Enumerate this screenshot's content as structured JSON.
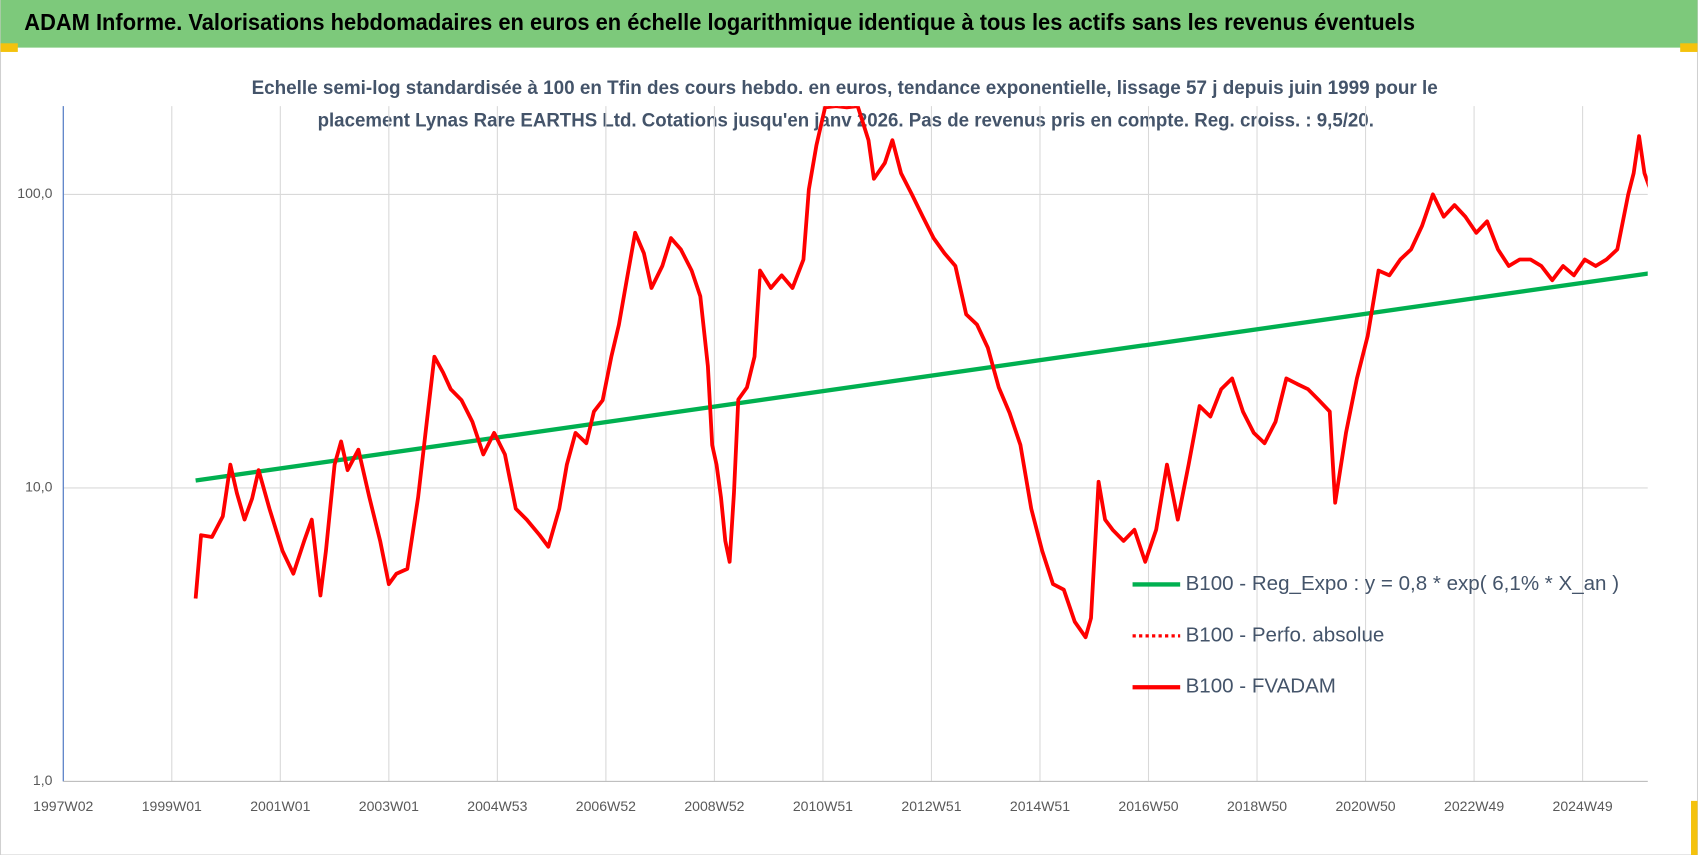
{
  "header": {
    "title": "ADAM Informe. Valorisations hebdomadaires en euros en échelle logarithmique identique à tous les actifs sans les revenus éventuels"
  },
  "chart_data": {
    "type": "line",
    "subtitle": [
      "Echelle semi-log standardisée à 100 en Tfin des cours hebdo. en euros, tendance exponentielle, lissage 57 j depuis juin 1999 pour le",
      "placement Lynas  Rare EARTHS Ltd. Cotations jusqu'en janv 2026. Pas de revenus pris en compte. Reg. croiss. : 9,5/20."
    ],
    "log_scale": true,
    "grid": true,
    "legend": "right",
    "ylim": [
      1,
      200
    ],
    "yticks": [
      {
        "value": 1,
        "label": "1,0"
      },
      {
        "value": 10,
        "label": "10,0"
      },
      {
        "value": 100,
        "label": "100,0"
      }
    ],
    "xlim": [
      1997,
      2026.2
    ],
    "xticks": [
      {
        "value": 1997,
        "label": "1997W02"
      },
      {
        "value": 1999,
        "label": "1999W01"
      },
      {
        "value": 2001,
        "label": "2001W01"
      },
      {
        "value": 2003,
        "label": "2003W01"
      },
      {
        "value": 2005,
        "label": "2004W53"
      },
      {
        "value": 2007,
        "label": "2006W52"
      },
      {
        "value": 2009,
        "label": "2008W52"
      },
      {
        "value": 2011,
        "label": "2010W51"
      },
      {
        "value": 2013,
        "label": "2012W51"
      },
      {
        "value": 2015,
        "label": "2014W51"
      },
      {
        "value": 2017,
        "label": "2016W50"
      },
      {
        "value": 2019,
        "label": "2018W50"
      },
      {
        "value": 2021,
        "label": "2020W50"
      },
      {
        "value": 2023,
        "label": "2022W49"
      },
      {
        "value": 2025,
        "label": "2024W49"
      }
    ],
    "x": [
      1999.44,
      1999.54,
      1999.74,
      1999.94,
      2000.08,
      2000.2,
      2000.34,
      2000.48,
      2000.6,
      2000.8,
      2001.04,
      2001.24,
      2001.44,
      2001.58,
      2001.74,
      2001.84,
      2002.0,
      2002.12,
      2002.24,
      2002.44,
      2002.64,
      2002.84,
      2003.0,
      2003.14,
      2003.34,
      2003.54,
      2003.7,
      2003.84,
      2004.0,
      2004.14,
      2004.34,
      2004.54,
      2004.74,
      2004.94,
      2005.14,
      2005.34,
      2005.54,
      2005.78,
      2005.94,
      2006.14,
      2006.28,
      2006.44,
      2006.64,
      2006.78,
      2006.94,
      2007.1,
      2007.24,
      2007.4,
      2007.54,
      2007.7,
      2007.84,
      2008.04,
      2008.2,
      2008.38,
      2008.58,
      2008.74,
      2008.88,
      2008.96,
      2009.04,
      2009.12,
      2009.2,
      2009.28,
      2009.36,
      2009.44,
      2009.6,
      2009.74,
      2009.84,
      2010.04,
      2010.24,
      2010.44,
      2010.64,
      2010.74,
      2010.88,
      2011.04,
      2011.24,
      2011.44,
      2011.64,
      2011.84,
      2011.94,
      2012.14,
      2012.28,
      2012.44,
      2012.64,
      2012.84,
      2013.04,
      2013.24,
      2013.44,
      2013.64,
      2013.84,
      2014.04,
      2014.24,
      2014.44,
      2014.64,
      2014.84,
      2015.04,
      2015.24,
      2015.44,
      2015.64,
      2015.84,
      2015.94,
      2016.08,
      2016.2,
      2016.34,
      2016.54,
      2016.74,
      2016.94,
      2017.14,
      2017.34,
      2017.54,
      2017.74,
      2017.94,
      2018.14,
      2018.34,
      2018.54,
      2018.74,
      2018.94,
      2019.14,
      2019.34,
      2019.54,
      2019.74,
      2019.94,
      2020.14,
      2020.34,
      2020.44,
      2020.64,
      2020.84,
      2021.04,
      2021.24,
      2021.44,
      2021.64,
      2021.84,
      2022.04,
      2022.24,
      2022.44,
      2022.64,
      2022.84,
      2023.04,
      2023.24,
      2023.44,
      2023.64,
      2023.84,
      2024.04,
      2024.24,
      2024.44,
      2024.64,
      2024.84,
      2025.04,
      2025.24,
      2025.44,
      2025.64,
      2025.84,
      2025.94,
      2026.04,
      2026.14,
      2026.28
    ],
    "series": [
      {
        "name": "B100 - Reg_Expo : y = 0,8 * exp( 6,1% *  X_an )",
        "color": "#00b050",
        "style": "solid",
        "x": [
          1999.44,
          2026.28
        ],
        "values": [
          10.6,
          54
        ]
      },
      {
        "name": "B100 - Perfo. absolue",
        "color": "#ff0000",
        "style": "dotted",
        "values": [
          4.2,
          6.9,
          6.8,
          8,
          12,
          9.6,
          7.8,
          9.2,
          11.5,
          8.5,
          6.1,
          5.1,
          6.6,
          7.8,
          4.3,
          6.1,
          12,
          14.4,
          11.5,
          13.5,
          9.3,
          6.6,
          4.7,
          5.1,
          5.3,
          9.3,
          16.8,
          28,
          24.7,
          21.7,
          19.9,
          16.8,
          13,
          15.4,
          13,
          8.5,
          7.8,
          6.9,
          6.3,
          8.5,
          12,
          15.4,
          14.2,
          18.2,
          19.9,
          28,
          36,
          53,
          74,
          63,
          48,
          57,
          71,
          65,
          55,
          45,
          26,
          14,
          12,
          9.3,
          6.6,
          5.6,
          9.6,
          20,
          22,
          28,
          55,
          48,
          53,
          48,
          60,
          104,
          147,
          198,
          200,
          198,
          200,
          153,
          113,
          128,
          153,
          118,
          100,
          84,
          71,
          63,
          57,
          39,
          36,
          30,
          22,
          18,
          14,
          8.5,
          6.1,
          4.7,
          4.5,
          3.5,
          3.1,
          3.6,
          10.5,
          7.8,
          7.2,
          6.6,
          7.2,
          5.6,
          7.2,
          12,
          7.8,
          12,
          19,
          17.5,
          21.7,
          23.6,
          18.2,
          15.4,
          14.2,
          16.8,
          23.6,
          22.6,
          21.7,
          19.9,
          18.2,
          8.9,
          15.4,
          23.6,
          33,
          55,
          53,
          60,
          65,
          78,
          100,
          84,
          92,
          84,
          74,
          81,
          65,
          57,
          60,
          60,
          57,
          51,
          57,
          53,
          60,
          57,
          60,
          65,
          100,
          118,
          158,
          118,
          100
        ]
      },
      {
        "name": "B100 - FVADAM",
        "color": "#ff0000",
        "style": "solid",
        "values": [
          4.2,
          6.9,
          6.8,
          8,
          12,
          9.6,
          7.8,
          9.2,
          11.5,
          8.5,
          6.1,
          5.1,
          6.6,
          7.8,
          4.3,
          6.1,
          12,
          14.4,
          11.5,
          13.5,
          9.3,
          6.6,
          4.7,
          5.1,
          5.3,
          9.3,
          16.8,
          28,
          24.7,
          21.7,
          19.9,
          16.8,
          13,
          15.4,
          13,
          8.5,
          7.8,
          6.9,
          6.3,
          8.5,
          12,
          15.4,
          14.2,
          18.2,
          19.9,
          28,
          36,
          53,
          74,
          63,
          48,
          57,
          71,
          65,
          55,
          45,
          26,
          14,
          12,
          9.3,
          6.6,
          5.6,
          9.6,
          20,
          22,
          28,
          55,
          48,
          53,
          48,
          60,
          104,
          147,
          198,
          200,
          198,
          200,
          153,
          113,
          128,
          153,
          118,
          100,
          84,
          71,
          63,
          57,
          39,
          36,
          30,
          22,
          18,
          14,
          8.5,
          6.1,
          4.7,
          4.5,
          3.5,
          3.1,
          3.6,
          10.5,
          7.8,
          7.2,
          6.6,
          7.2,
          5.6,
          7.2,
          12,
          7.8,
          12,
          19,
          17.5,
          21.7,
          23.6,
          18.2,
          15.4,
          14.2,
          16.8,
          23.6,
          22.6,
          21.7,
          19.9,
          18.2,
          8.9,
          15.4,
          23.6,
          33,
          55,
          53,
          60,
          65,
          78,
          100,
          84,
          92,
          84,
          74,
          81,
          65,
          57,
          60,
          60,
          57,
          51,
          57,
          53,
          60,
          57,
          60,
          65,
          100,
          118,
          158,
          118,
          100
        ]
      }
    ]
  }
}
